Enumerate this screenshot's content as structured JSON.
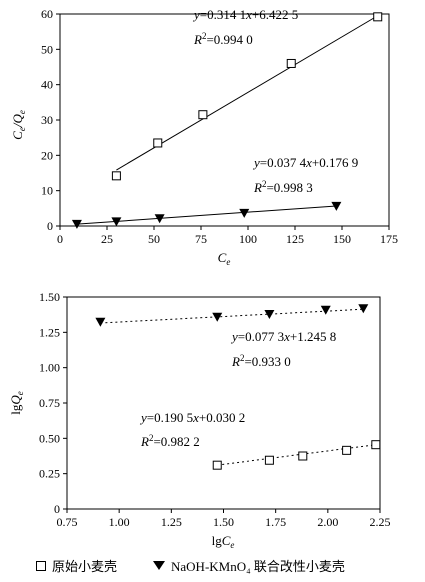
{
  "chart_data": [
    {
      "type": "scatter",
      "xlabel": "Ce",
      "ylabel": "Ce/Qe",
      "xlim": [
        0,
        175
      ],
      "ylim": [
        0,
        60
      ],
      "xticks": [
        0,
        25,
        50,
        75,
        100,
        125,
        150,
        175
      ],
      "yticks": [
        0,
        10,
        20,
        30,
        40,
        50,
        60
      ],
      "series": [
        {
          "name": "原始小麦壳",
          "marker": "square",
          "points": [
            [
              30,
              14.2
            ],
            [
              52,
              23.5
            ],
            [
              76,
              31.5
            ],
            [
              123,
              46
            ],
            [
              169,
              59.2
            ]
          ],
          "fit": {
            "slope": 0.3141,
            "intercept": 6.4225,
            "x_range": [
              30,
              169
            ]
          }
        },
        {
          "name": "NaOH-KMnO₄ 联合改性小麦壳",
          "marker": "triangle-down",
          "points": [
            [
              9,
              0.6
            ],
            [
              30,
              1.3
            ],
            [
              53,
              2.2
            ],
            [
              98,
              3.7
            ],
            [
              147,
              5.7
            ]
          ],
          "fit": {
            "slope": 0.0374,
            "intercept": 0.1769,
            "x_range": [
              9,
              147
            ]
          }
        }
      ],
      "annotations": [
        {
          "eq": "y=0.314 1x+6.422 5",
          "r2": "R²=0.994 0"
        },
        {
          "eq": "y=0.037 4x+0.176 9",
          "r2": "R²=0.998 3"
        }
      ]
    },
    {
      "type": "scatter",
      "xlabel": "lgCe",
      "ylabel": "lgQe",
      "xlim": [
        0.75,
        2.25
      ],
      "ylim": [
        0,
        1.5
      ],
      "xticks": [
        "0.75",
        "1.00",
        "1.25",
        "1.50",
        "1.75",
        "2.00",
        "2.25"
      ],
      "yticks": [
        "0",
        "0.25",
        "0.50",
        "0.75",
        "1.00",
        "1.25",
        "1.50"
      ],
      "series": [
        {
          "name": "NaOH-KMnO₄ 联合改性小麦壳",
          "marker": "triangle-down",
          "points": [
            [
              0.91,
              1.325
            ],
            [
              1.47,
              1.36
            ],
            [
              1.72,
              1.38
            ],
            [
              1.99,
              1.41
            ],
            [
              2.17,
              1.42
            ]
          ],
          "fit": {
            "slope": 0.0773,
            "intercept": 1.2458,
            "x_range": [
              0.91,
              2.17
            ]
          }
        },
        {
          "name": "原始小麦壳",
          "marker": "square",
          "points": [
            [
              1.47,
              0.31
            ],
            [
              1.72,
              0.345
            ],
            [
              1.88,
              0.375
            ],
            [
              2.09,
              0.415
            ],
            [
              2.23,
              0.455
            ]
          ],
          "fit": {
            "slope": 0.1905,
            "intercept": 0.0302,
            "x_range": [
              1.47,
              2.23
            ]
          }
        }
      ],
      "annotations": [
        {
          "eq": "y=0.077 3x+1.245 8",
          "r2": "R²=0.933 0"
        },
        {
          "eq": "y=0.190 5x+0.030 2",
          "r2": "R²=0.982 2"
        }
      ]
    }
  ],
  "legend": {
    "items": [
      "原始小麦壳",
      "NaOH-KMnO₄ 联合改性小麦壳"
    ]
  }
}
